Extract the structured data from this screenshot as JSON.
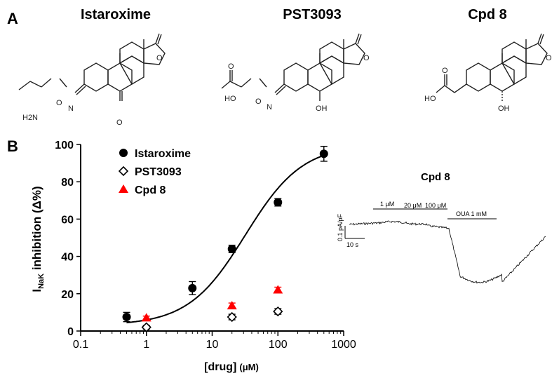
{
  "panels": {
    "a_label": "A",
    "b_label": "B"
  },
  "compounds": [
    {
      "name": "Istaroxime",
      "atoms": {
        "amine": "H2N",
        "o_ring": "O",
        "o_link": "O",
        "n_ox": "N",
        "o_ketone2": "O"
      }
    },
    {
      "name": "PST3093",
      "atoms": {
        "ho": "HO",
        "o_ring": "O",
        "o_carbonyl": "O",
        "o_link": "O",
        "n_ox": "N",
        "oh": "OH"
      }
    },
    {
      "name": "Cpd 8",
      "atoms": {
        "ho": "HO",
        "o_ring": "O",
        "o_carbonyl": "O",
        "oh": "OH"
      }
    }
  ],
  "trace": {
    "title": "Cpd 8",
    "labels": {
      "c1": "1 μM",
      "c20": "20 μM",
      "c100": "100 μM",
      "oua": "OUA 1 mM"
    },
    "scale_y": "0.1 pA/pF",
    "scale_x": "10 s"
  },
  "chart_data": {
    "type": "scatter",
    "x_scale": "log",
    "xlim": [
      0.1,
      1000
    ],
    "ylim": [
      0,
      100
    ],
    "x_ticks": [
      0.1,
      1,
      10,
      100,
      1000
    ],
    "x_tick_labels": [
      "0.1",
      "1",
      "10",
      "100",
      "1000"
    ],
    "y_ticks": [
      0,
      20,
      40,
      60,
      80,
      100
    ],
    "y_tick_labels": [
      "0",
      "20",
      "40",
      "60",
      "80",
      "100"
    ],
    "xlabel_main": "[drug]",
    "xlabel_unit": "(μM)",
    "ylabel_prefix": "I",
    "ylabel_sub": "NaK",
    "ylabel_suffix": " inhibition (Δ%)",
    "legend_position": "top-left",
    "series": [
      {
        "name": "Istaroxime",
        "marker": "circle",
        "color": "#000000",
        "x": [
          0.5,
          5,
          20,
          100,
          500
        ],
        "y": [
          7.5,
          23,
          44,
          69,
          95
        ],
        "err": [
          2.5,
          3.5,
          2,
          2,
          4
        ]
      },
      {
        "name": "PST3093",
        "marker": "diamond-open",
        "color": "#000000",
        "x": [
          1,
          20,
          100
        ],
        "y": [
          2,
          7.5,
          10.5
        ],
        "err": [
          1,
          1.5,
          1.5
        ]
      },
      {
        "name": "Cpd 8",
        "marker": "triangle",
        "color": "#ff0000",
        "x": [
          1,
          20,
          100
        ],
        "y": [
          7,
          13.5,
          22
        ],
        "err": [
          1,
          1.5,
          1.5
        ]
      }
    ],
    "fit": {
      "series": "Istaroxime",
      "ec50": 32,
      "hill": 1,
      "top": 100,
      "bottom": 3
    }
  }
}
